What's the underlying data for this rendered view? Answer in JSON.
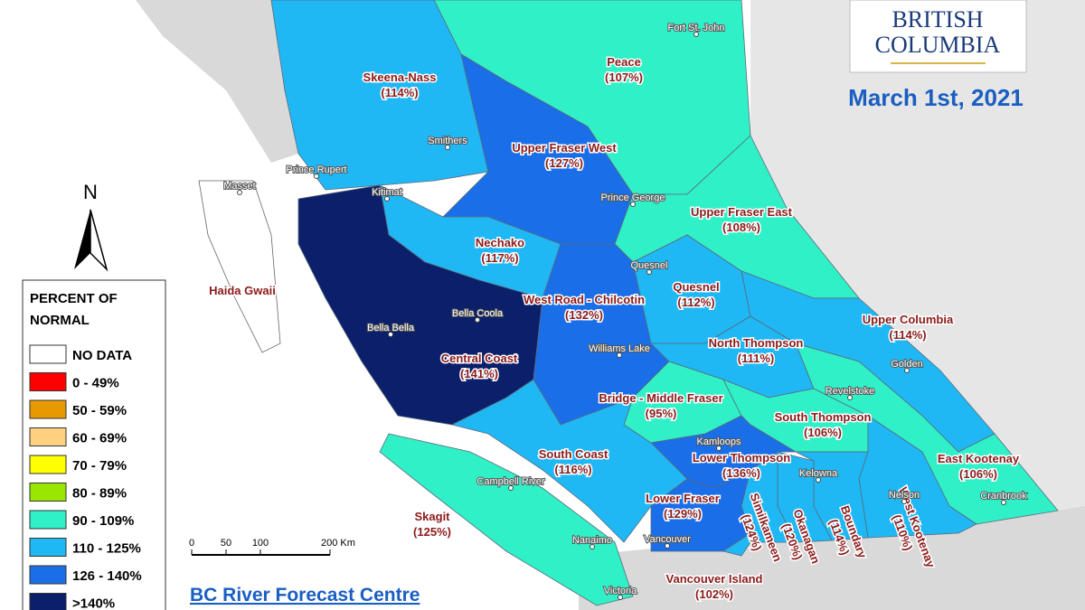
{
  "header": {
    "logo": [
      "BRITISH",
      "COLUMBIA"
    ],
    "date": "March 1st, 2021"
  },
  "basins": [
    {
      "name": "Skeena-Nass",
      "percent": "(114%)",
      "color": "#1fb8f5"
    },
    {
      "name": "Peace",
      "percent": "(107%)",
      "color": "#30f0c8"
    },
    {
      "name": "Upper Fraser West",
      "percent": "(127%)",
      "color": "#1a6ee8"
    },
    {
      "name": "Upper Fraser East",
      "percent": "(108%)",
      "color": "#30f0c8"
    },
    {
      "name": "Nechako",
      "percent": "(117%)",
      "color": "#1fb8f5"
    },
    {
      "name": "Central Coast",
      "percent": "(141%)",
      "color": "#0b1f6b"
    },
    {
      "name": "West Road - Chilcotin",
      "percent": "(132%)",
      "color": "#1a6ee8"
    },
    {
      "name": "Quesnel",
      "percent": "(112%)",
      "color": "#1fb8f5"
    },
    {
      "name": "Upper Columbia",
      "percent": "(114%)",
      "color": "#1fb8f5"
    },
    {
      "name": "North Thompson",
      "percent": "(111%)",
      "color": "#1fb8f5"
    },
    {
      "name": "Bridge - Middle Fraser",
      "percent": "(95%)",
      "color": "#30f0c8"
    },
    {
      "name": "South Thompson",
      "percent": "(106%)",
      "color": "#30f0c8"
    },
    {
      "name": "East Kootenay",
      "percent": "(106%)",
      "color": "#30f0c8"
    },
    {
      "name": "West Kootenay",
      "percent": "(110%)",
      "color": "#1fb8f5"
    },
    {
      "name": "Boundary",
      "percent": "(114%)",
      "color": "#1fb8f5"
    },
    {
      "name": "Okanagan",
      "percent": "(120%)",
      "color": "#1fb8f5"
    },
    {
      "name": "Similkameen",
      "percent": "(124%)",
      "color": "#1fb8f5"
    },
    {
      "name": "Lower Thompson",
      "percent": "(136%)",
      "color": "#1a6ee8"
    },
    {
      "name": "South Coast",
      "percent": "(116%)",
      "color": "#1fb8f5"
    },
    {
      "name": "Lower Fraser",
      "percent": "(129%)",
      "color": "#1a6ee8"
    },
    {
      "name": "Skagit",
      "percent": "(125%)",
      "color": "#1fb8f5"
    },
    {
      "name": "Vancouver Island",
      "percent": "(102%)",
      "color": "#30f0c8"
    }
  ],
  "no_data_regions": [
    "Haida Gwaii"
  ],
  "cities": [
    "Fort St. John",
    "Smithers",
    "Prince Rupert",
    "Masset",
    "Kitimat",
    "Prince George",
    "Quesnel",
    "Bella Coola",
    "Bella Bella",
    "Williams Lake",
    "Golden",
    "Revelstoke",
    "Kamloops",
    "Kelowna",
    "Nelson",
    "Cranbrook",
    "Campbell River",
    "Nanaimo",
    "Vancouver",
    "Victoria"
  ],
  "legend": {
    "title": [
      "PERCENT OF",
      "NORMAL"
    ],
    "items": [
      {
        "label": "NO DATA",
        "color": "#ffffff"
      },
      {
        "label": "0 - 49%",
        "color": "#ff0000"
      },
      {
        "label": "50 - 59%",
        "color": "#e69a00"
      },
      {
        "label": "60 - 69%",
        "color": "#ffd080"
      },
      {
        "label": "70 - 79%",
        "color": "#ffff00"
      },
      {
        "label": "80 - 89%",
        "color": "#99e600"
      },
      {
        "label": "90 - 109%",
        "color": "#30f0c8"
      },
      {
        "label": "110 - 125%",
        "color": "#1fb8f5"
      },
      {
        "label": "126 - 140%",
        "color": "#1a6ee8"
      },
      {
        "label": ">140%",
        "color": "#0b1f6b"
      }
    ]
  },
  "north": "N",
  "scale": [
    "0",
    "50",
    "100",
    "200 Km"
  ],
  "credit": "BC River Forecast Centre"
}
